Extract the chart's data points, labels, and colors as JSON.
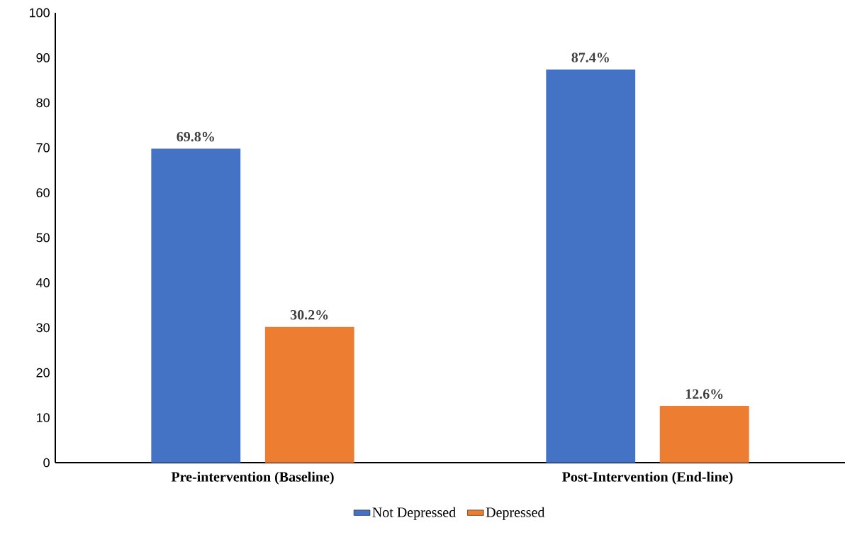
{
  "chart_data": {
    "type": "bar",
    "categories": [
      "Pre-intervention (Baseline)",
      "Post-Intervention (End-line)"
    ],
    "series": [
      {
        "name": "Not Depressed",
        "color": "#4472c4",
        "values": [
          69.8,
          87.4
        ],
        "value_labels": [
          "69.8%",
          "87.4%"
        ]
      },
      {
        "name": "Depressed",
        "color": "#ed7d31",
        "values": [
          30.2,
          12.6
        ],
        "value_labels": [
          "30.2%",
          "12.6%"
        ]
      }
    ],
    "ylim": [
      0,
      100
    ],
    "yticks": [
      0,
      10,
      20,
      30,
      40,
      50,
      60,
      70,
      80,
      90,
      100
    ],
    "grid": false,
    "legend": "bottom"
  }
}
